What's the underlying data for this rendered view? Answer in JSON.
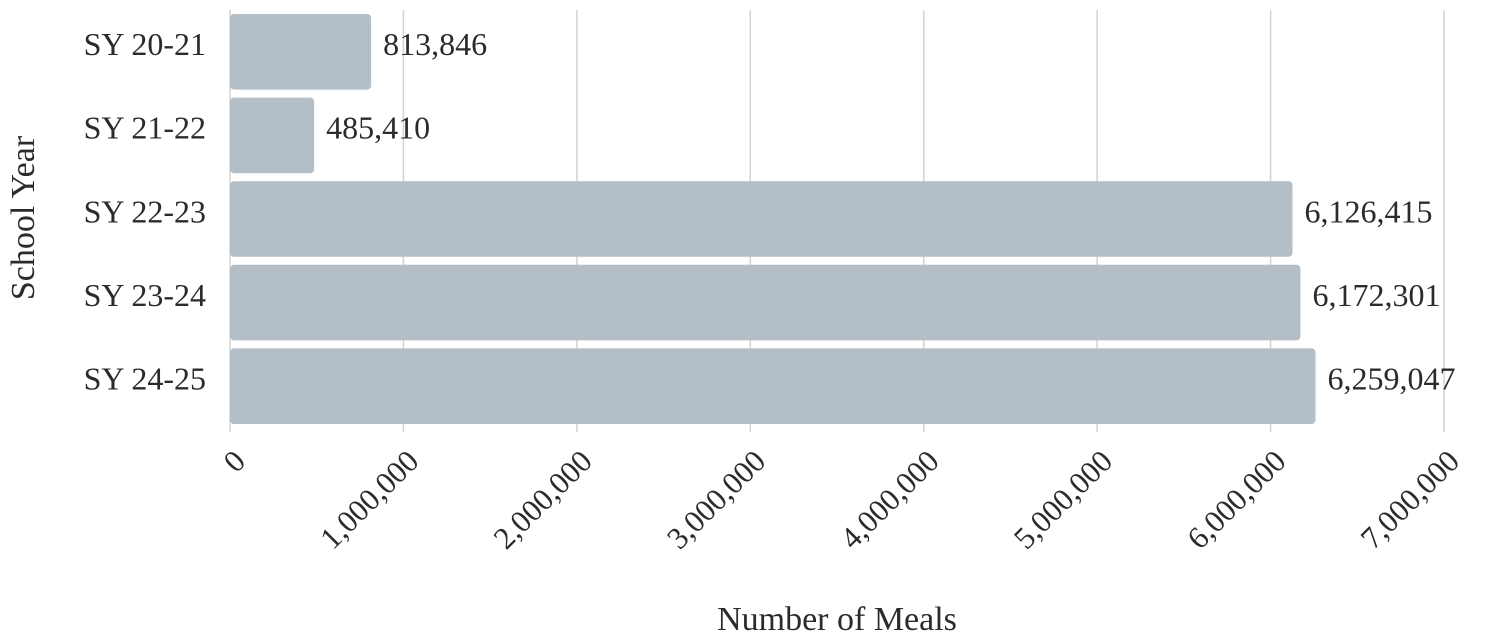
{
  "chart_data": {
    "type": "bar",
    "orientation": "horizontal",
    "xlabel": "Number of Meals",
    "ylabel": "School Year",
    "categories": [
      "SY 20-21",
      "SY 21-22",
      "SY 22-23",
      "SY 23-24",
      "SY 24-25"
    ],
    "values": [
      813846,
      485410,
      6126415,
      6172301,
      6259047
    ],
    "value_labels": [
      "813,846",
      "485,410",
      "6,126,415",
      "6,172,301",
      "6,259,047"
    ],
    "color": "#b3bec7",
    "xlim": [
      0,
      7000000
    ],
    "xticks": [
      0,
      {
        "value": 1000000,
        "label": "1,000,000"
      },
      {
        "value": 2000000,
        "label": "2,000,000"
      },
      {
        "value": 3000000,
        "label": "3,000,000"
      },
      {
        "value": 4000000,
        "label": "4,000,000"
      },
      {
        "value": 5000000,
        "label": "5,000,000"
      },
      {
        "value": 6000000,
        "label": "6,000,000"
      },
      {
        "value": 7000000,
        "label": "7,000,000"
      }
    ],
    "grid": true
  }
}
